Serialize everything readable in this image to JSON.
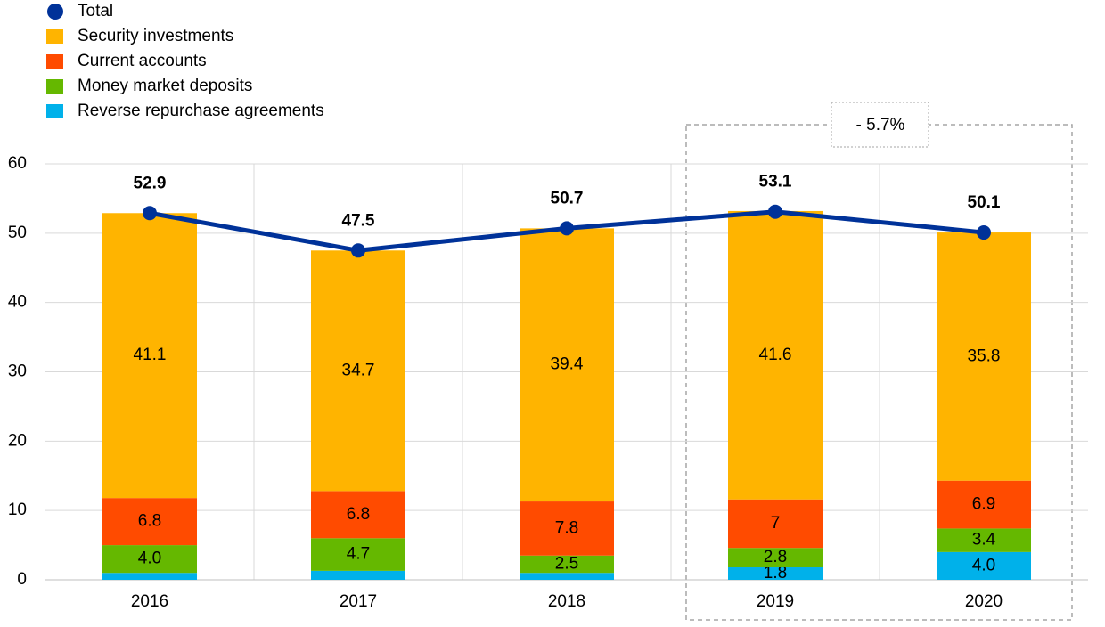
{
  "chart_data": {
    "type": "bar",
    "categories": [
      "2016",
      "2017",
      "2018",
      "2019",
      "2020"
    ],
    "series": [
      {
        "name": "Total",
        "type": "line",
        "color": "#003299",
        "values": [
          52.9,
          47.5,
          50.7,
          53.1,
          50.1
        ]
      },
      {
        "name": "Security investments",
        "color": "#ffb400",
        "values": [
          41.1,
          34.7,
          39.4,
          41.6,
          35.8
        ]
      },
      {
        "name": "Current accounts",
        "color": "#ff4b00",
        "values": [
          6.8,
          6.8,
          7.8,
          7.0,
          6.9
        ]
      },
      {
        "name": "Money market deposits",
        "color": "#65b800",
        "values": [
          4.0,
          4.7,
          2.5,
          2.8,
          3.4
        ],
        "value_labels": [
          "4.0",
          "4.7",
          "2.5",
          "2.8",
          "3.4"
        ]
      },
      {
        "name": "Reverse repurchase agreements",
        "color": "#00b1ea",
        "values": [
          1.0,
          1.3,
          1.0,
          1.8,
          4.0
        ],
        "value_labels": [
          null,
          null,
          null,
          "1.8",
          "4.0"
        ]
      }
    ],
    "ylim": [
      0,
      60
    ],
    "yticks": [
      0,
      10,
      20,
      30,
      40,
      50,
      60
    ],
    "grid": true,
    "annotation": "- 5.7%",
    "annotation_color": "#e4000f"
  }
}
